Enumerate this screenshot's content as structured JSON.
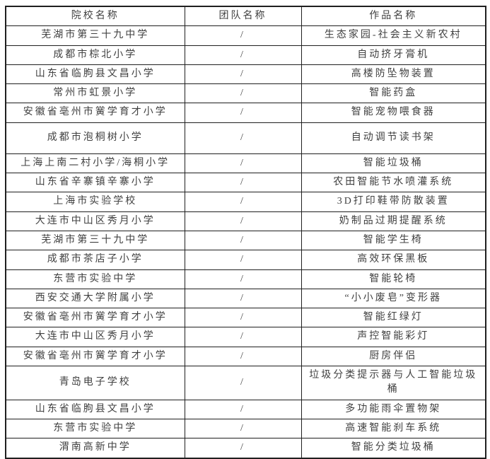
{
  "page": {
    "background": "#ffffff",
    "text_color": "#404040",
    "border_color": "#1f1f1f"
  },
  "table": {
    "headers": [
      "院校名称",
      "团队名称",
      "作品名称"
    ],
    "rows": [
      {
        "school": "芜湖市第三十九中学",
        "team": "/",
        "work": "生态家园-社会主义新农村"
      },
      {
        "school": "成都市棕北小学",
        "team": "/",
        "work": "自动挤牙膏机"
      },
      {
        "school": "山东省临朐县文昌小学",
        "team": "/",
        "work": "高楼防坠物装置"
      },
      {
        "school": "常州市虹景小学",
        "team": "/",
        "work": "智能药盒"
      },
      {
        "school": "安徽省亳州市黉学育才小学",
        "team": "/",
        "work": "智能宠物喂食器"
      },
      {
        "school": "成都市泡桐树小学",
        "team": "/",
        "work": "自动调节读书架"
      },
      {
        "school": "上海上南二村小学/海桐小学",
        "team": "/",
        "work": "智能垃圾桶"
      },
      {
        "school": "山东省辛寨镇辛寨小学",
        "team": "/",
        "work": "农田智能节水喷灌系统"
      },
      {
        "school": "上海市实验学校",
        "team": "/",
        "work": "3D打印鞋带防散装置"
      },
      {
        "school": "大连市中山区秀月小学",
        "team": "/",
        "work": "奶制品过期提醒系统"
      },
      {
        "school": "芜湖市第三十九中学",
        "team": "/",
        "work": "智能学生椅"
      },
      {
        "school": "成都市茶店子小学",
        "team": "/",
        "work": "高效环保黑板"
      },
      {
        "school": "东营市实验中学",
        "team": "/",
        "work": "智能轮椅"
      },
      {
        "school": "西安交通大学附属小学",
        "team": "/",
        "work": "“小小废皂”变形器"
      },
      {
        "school": "安徽省亳州市黉学育才小学",
        "team": "/",
        "work": "智能红绿灯"
      },
      {
        "school": "大连市中山区秀月小学",
        "team": "/",
        "work": "声控智能彩灯"
      },
      {
        "school": "安徽省亳州市黉学育才小学",
        "team": "/",
        "work": "厨房伴侣"
      },
      {
        "school": "青岛电子学校",
        "team": "/",
        "work": "垃圾分类提示器与人工智能垃圾桶"
      },
      {
        "school": "山东省临朐县文昌小学",
        "team": "/",
        "work": "多功能雨伞置物架"
      },
      {
        "school": "东营市实验中学",
        "team": "/",
        "work": "高速智能刹车系统"
      },
      {
        "school": "渭南高新中学",
        "team": "/",
        "work": "智能分类垃圾桶"
      }
    ]
  }
}
